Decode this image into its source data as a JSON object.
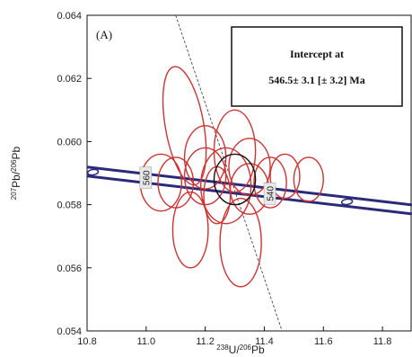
{
  "chart_data": {
    "type": "concordia",
    "panel_label": "(A)",
    "xlabel": {
      "sup": "238",
      "main": "U/",
      "sup2": "206",
      "main2": "Pb"
    },
    "ylabel": {
      "sup": "207",
      "main": "Pb/",
      "sup2": "206",
      "main2": "Pb"
    },
    "xlim": [
      10.8,
      11.9
    ],
    "ylim": [
      0.054,
      0.064
    ],
    "xticks": [
      "10.8",
      "11.0",
      "11.2",
      "11.4",
      "11.6",
      "11.8"
    ],
    "yticks": [
      "0.054",
      "0.056",
      "0.058",
      "0.060",
      "0.062",
      "0.064"
    ],
    "intercept_box": {
      "line1": "Intercept at",
      "line2": "546.5± 3.1 [± 3.2]  Ma"
    },
    "concordia_band": {
      "x": [
        10.8,
        11.9
      ],
      "y": [
        0.05905,
        0.05785
      ]
    },
    "concordia_ticks": [
      {
        "label": "560",
        "x": 11.0,
        "y": 0.05885
      },
      {
        "label": "540",
        "x": 11.42,
        "y": 0.05835
      }
    ],
    "regression_line": {
      "x": [
        11.1,
        11.46
      ],
      "y": [
        0.064,
        0.054
      ]
    },
    "ellipses": [
      {
        "cx": 11.13,
        "cy": 0.0605,
        "rx": 0.065,
        "ry": 0.0019,
        "angle": -10,
        "color": "#cc3333"
      },
      {
        "cx": 11.3,
        "cy": 0.0597,
        "rx": 0.07,
        "ry": 0.0013,
        "angle": 0,
        "color": "#cc3333"
      },
      {
        "cx": 11.2,
        "cy": 0.0595,
        "rx": 0.07,
        "ry": 0.001,
        "angle": 0,
        "color": "#cc3333"
      },
      {
        "cx": 11.27,
        "cy": 0.0586,
        "rx": 0.085,
        "ry": 0.0012,
        "angle": 0,
        "color": "#cc3333"
      },
      {
        "cx": 11.2,
        "cy": 0.0589,
        "rx": 0.07,
        "ry": 0.0009,
        "angle": 0,
        "color": "#cc3333"
      },
      {
        "cx": 11.05,
        "cy": 0.0587,
        "rx": 0.07,
        "ry": 0.0009,
        "angle": 0,
        "color": "#cc3333"
      },
      {
        "cx": 11.1,
        "cy": 0.0587,
        "rx": 0.06,
        "ry": 0.0008,
        "angle": 0,
        "color": "#cc3333"
      },
      {
        "cx": 11.35,
        "cy": 0.0585,
        "rx": 0.065,
        "ry": 0.0008,
        "angle": 0,
        "color": "#cc3333"
      },
      {
        "cx": 11.42,
        "cy": 0.0587,
        "rx": 0.055,
        "ry": 0.0008,
        "angle": 0,
        "color": "#cc3333"
      },
      {
        "cx": 11.47,
        "cy": 0.0589,
        "rx": 0.05,
        "ry": 0.0007,
        "angle": 0,
        "color": "#cc3333"
      },
      {
        "cx": 11.55,
        "cy": 0.0588,
        "rx": 0.05,
        "ry": 0.0007,
        "angle": 0,
        "color": "#cc3333"
      },
      {
        "cx": 11.24,
        "cy": 0.0583,
        "rx": 0.045,
        "ry": 0.0009,
        "angle": 0,
        "color": "#cc3333"
      },
      {
        "cx": 11.35,
        "cy": 0.0592,
        "rx": 0.07,
        "ry": 0.0009,
        "angle": 0,
        "color": "#cc3333"
      },
      {
        "cx": 11.15,
        "cy": 0.0572,
        "rx": 0.06,
        "ry": 0.0012,
        "angle": 0,
        "color": "#cc3333"
      },
      {
        "cx": 11.32,
        "cy": 0.0568,
        "rx": 0.07,
        "ry": 0.0014,
        "angle": 0,
        "color": "#cc3333"
      },
      {
        "cx": 11.3,
        "cy": 0.0588,
        "rx": 0.07,
        "ry": 0.0008,
        "angle": 0,
        "color": "#111111"
      }
    ]
  }
}
